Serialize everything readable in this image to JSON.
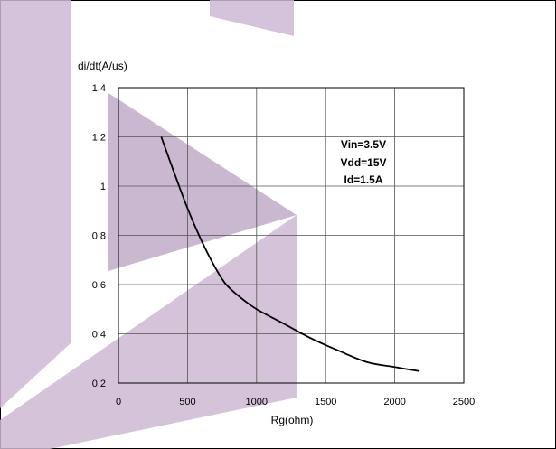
{
  "chart_data": {
    "type": "line",
    "title": "",
    "xlabel": "Rg(ohm)",
    "ylabel": "di/dt(A/us)",
    "xlim": [
      0,
      2500
    ],
    "ylim": [
      0.2,
      1.4
    ],
    "x_ticks": [
      "0",
      "500",
      "1000",
      "1500",
      "2000",
      "2500"
    ],
    "y_ticks": [
      "0.2",
      "0.4",
      "0.6",
      "0.8",
      "1",
      "1.2",
      "1.4"
    ],
    "grid": true,
    "series": [
      {
        "x": [
          310,
          400,
          500,
          600,
          700,
          780,
          900,
          1000,
          1200,
          1400,
          1600,
          1800,
          2000,
          2180
        ],
        "y": [
          1.2,
          1.06,
          0.91,
          0.78,
          0.67,
          0.6,
          0.54,
          0.5,
          0.44,
          0.38,
          0.33,
          0.285,
          0.265,
          0.248
        ],
        "color": "#000000"
      }
    ],
    "annotations": [
      "Vin=3.5V",
      "Vdd=15V",
      "Id=1.5A"
    ],
    "watermark_color": "#cdb9d3"
  }
}
